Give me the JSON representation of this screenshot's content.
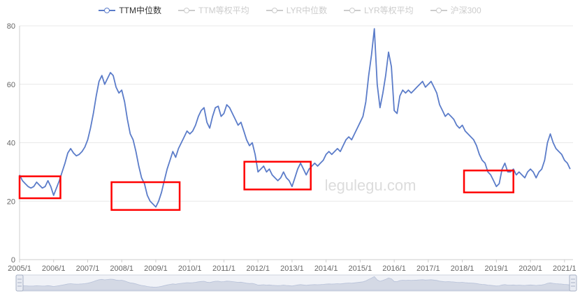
{
  "legend": {
    "items": [
      {
        "label": "TTM中位数",
        "active": true
      },
      {
        "label": "TTM等权平均",
        "active": false
      },
      {
        "label": "LYR中位数",
        "active": false
      },
      {
        "label": "LYR等权平均",
        "active": false
      },
      {
        "label": "沪深300",
        "active": false
      }
    ]
  },
  "watermark": "legulegu.com",
  "colors": {
    "line": "#5b7cc9",
    "inactive": "#cccccc",
    "highlight": "#ff0000",
    "axis": "#cccccc",
    "grid": "#e8e8e8",
    "label": "#666666",
    "zoom_bg": "#f0f2f7",
    "zoom_fill": "#d4d9e5",
    "zoom_border": "#cfd4df",
    "watermark_color": "#dcdcdc"
  },
  "chart_data": {
    "type": "line",
    "title": "",
    "xlabel": "",
    "ylabel": "",
    "ylim": [
      0,
      80
    ],
    "xlim": [
      2005,
      2021.25
    ],
    "x_start": 2005.0,
    "x_step_months": 1,
    "grid": true,
    "legend_position": "top",
    "y_ticks": [
      0,
      20,
      40,
      60,
      80
    ],
    "x_ticks": [
      "2005/1",
      "2006/1",
      "2007/1",
      "2008/1",
      "2009/1",
      "2010/1",
      "2011/1",
      "2012/1",
      "2013/1",
      "2014/1",
      "2015/1",
      "2016/1",
      "2017/1",
      "2018/1",
      "2019/1",
      "2020/1",
      "2021/1"
    ],
    "series": [
      {
        "name": "TTM中位数",
        "values": [
          29,
          27,
          26,
          25,
          24.5,
          25,
          26.5,
          25.5,
          24.5,
          25,
          27,
          25,
          22,
          24.5,
          27,
          30,
          33,
          36.5,
          38,
          36.5,
          35.5,
          36,
          37,
          38.5,
          41,
          45,
          50,
          56,
          61,
          63,
          60,
          62,
          64,
          63,
          59,
          57,
          58,
          54,
          48,
          43,
          41,
          37,
          32,
          28,
          26,
          22,
          20,
          19,
          18,
          20,
          23,
          27,
          31,
          34,
          37,
          35,
          38,
          40,
          42,
          44,
          43,
          44,
          46,
          49,
          51,
          52,
          47,
          45,
          49,
          52,
          52.5,
          49,
          50,
          53,
          52,
          50,
          48,
          46,
          47,
          44,
          41,
          39,
          40,
          36,
          30,
          31,
          32,
          30,
          31,
          29,
          28,
          27,
          28,
          30,
          28,
          27,
          25,
          28,
          31,
          33,
          31,
          29,
          31,
          32,
          33,
          32,
          33,
          34,
          36,
          37,
          36,
          37,
          38,
          37,
          39,
          41,
          42,
          41,
          43,
          45,
          47,
          49,
          54,
          63,
          70,
          79,
          60,
          52,
          57,
          63,
          71,
          66,
          51,
          50,
          56,
          58,
          57,
          58,
          57,
          58,
          59,
          60,
          61,
          59,
          60,
          61,
          59,
          57,
          53,
          51,
          49,
          50,
          49,
          48,
          46,
          45,
          46,
          44,
          43,
          42,
          41,
          39,
          36,
          34,
          33,
          30,
          29,
          27,
          25,
          26,
          31,
          33,
          30,
          30,
          31,
          29,
          30,
          29,
          28,
          30,
          31,
          30,
          28,
          30,
          31,
          34,
          40,
          43,
          40,
          38,
          37,
          36,
          34,
          33,
          31
        ]
      }
    ],
    "highlight_boxes": [
      {
        "x1": 2005.0,
        "x2": 2006.2,
        "y1": 21,
        "y2": 28.5
      },
      {
        "x1": 2007.7,
        "x2": 2009.7,
        "y1": 17,
        "y2": 26.5
      },
      {
        "x1": 2011.6,
        "x2": 2013.55,
        "y1": 24,
        "y2": 33.5
      },
      {
        "x1": 2018.05,
        "x2": 2019.5,
        "y1": 23,
        "y2": 30.5
      }
    ]
  }
}
